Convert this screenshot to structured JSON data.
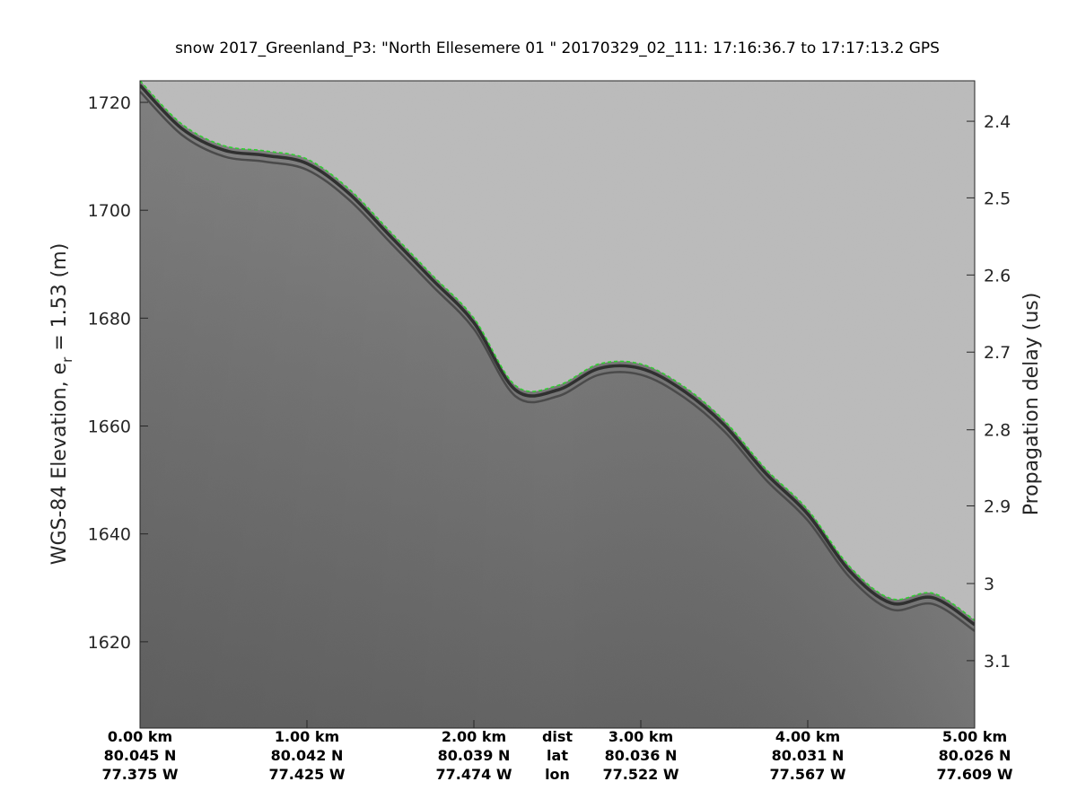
{
  "chart_data": {
    "type": "radar-echogram",
    "title": "snow 2017_Greenland_P3: \"North Ellesemere 01 \"  20170329_02_111: 17:16:36.7 to 17:17:13.2 GPS",
    "ylabel_left": "WGS-84 Elevation, e",
    "ylabel_left_sub": "r",
    "ylabel_left_suffix": " = 1.53 (m)",
    "ylabel_right": "Propagation delay (us)",
    "ylim": [
      1604,
      1724
    ],
    "yticks_left": [
      1620,
      1640,
      1660,
      1680,
      1700,
      1720
    ],
    "yticks_right": [
      {
        "label": "2.4",
        "elev": 1716.5
      },
      {
        "label": "2.5",
        "elev": 1702.3
      },
      {
        "label": "2.6",
        "elev": 1688.0
      },
      {
        "label": "2.7",
        "elev": 1673.7
      },
      {
        "label": "2.8",
        "elev": 1659.3
      },
      {
        "label": "2.9",
        "elev": 1645.2
      },
      {
        "label": "3",
        "elev": 1630.8
      },
      {
        "label": "3.1",
        "elev": 1616.5
      }
    ],
    "xlim": [
      0,
      5
    ],
    "xticks": [
      {
        "x": 0,
        "dist": "0.00 km",
        "lat": "80.045 N",
        "lon": "77.375 W"
      },
      {
        "x": 1,
        "dist": "1.00 km",
        "lat": "80.042 N",
        "lon": "77.425 W"
      },
      {
        "x": 2,
        "dist": "2.00 km",
        "lat": "80.039 N",
        "lon": "77.474 W"
      },
      {
        "x": 3,
        "dist": "3.00 km",
        "lat": "80.036 N",
        "lon": "77.522 W"
      },
      {
        "x": 4,
        "dist": "4.00 km",
        "lat": "80.031 N",
        "lon": "77.567 W"
      },
      {
        "x": 5,
        "dist": "5.00 km",
        "lat": "80.026 N",
        "lon": "77.609 W"
      }
    ],
    "row_labels": {
      "dist": "dist",
      "lat": "lat",
      "lon": "lon"
    },
    "surface_elevation": {
      "x": [
        0,
        0.25,
        0.5,
        0.75,
        1.0,
        1.25,
        1.5,
        1.75,
        2.0,
        2.25,
        2.5,
        2.75,
        3.0,
        3.25,
        3.5,
        3.75,
        4.0,
        4.25,
        4.5,
        4.75,
        5.0
      ],
      "y": [
        1724,
        1716,
        1712,
        1711,
        1709.5,
        1704,
        1696,
        1688,
        1680,
        1667.5,
        1667.5,
        1671.5,
        1671.5,
        1667.5,
        1661,
        1652,
        1644.5,
        1634,
        1628,
        1629,
        1624
      ]
    },
    "colors": {
      "sky": "#c7c7c7",
      "echo_light": "#8a8a8a",
      "echo_dark": "#5f5f5f",
      "surface_layer": "#3a3a3a",
      "surface_pick": "#2fd12f"
    }
  }
}
